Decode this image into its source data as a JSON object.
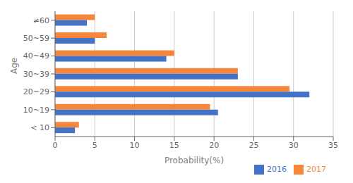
{
  "chart_data": {
    "type": "bar",
    "orientation": "horizontal",
    "categories": [
      "< 10",
      "10~19",
      "20~29",
      "30~39",
      "40~49",
      "50~59",
      "≠60"
    ],
    "series": [
      {
        "name": "2017",
        "color": "#F4873B",
        "values": [
          3.0,
          19.5,
          29.5,
          23.0,
          15.0,
          6.5,
          5.0
        ]
      },
      {
        "name": "2016",
        "color": "#4472C4",
        "values": [
          2.5,
          20.5,
          32.0,
          23.0,
          14.0,
          5.0,
          4.0
        ]
      }
    ],
    "xlabel": "Probability(%)",
    "ylabel": "Age",
    "xlim": [
      0,
      35
    ],
    "xticks": [
      0,
      5,
      10,
      15,
      20,
      25,
      30,
      35
    ],
    "grid": true,
    "legend": "lower right"
  }
}
